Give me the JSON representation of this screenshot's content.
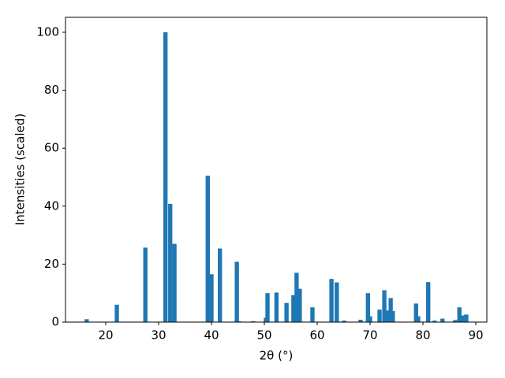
{
  "chart_data": {
    "type": "bar",
    "xlabel": "2θ (°)",
    "ylabel": "Intensities (scaled)",
    "x": [
      16.4,
      22.1,
      27.5,
      31.3,
      32.2,
      33.0,
      39.3,
      40.0,
      41.6,
      44.8,
      45.2,
      47.9,
      50.3,
      50.6,
      52.3,
      54.2,
      55.5,
      56.1,
      56.7,
      59.1,
      62.7,
      63.7,
      65.1,
      68.2,
      69.6,
      70.0,
      71.8,
      72.7,
      73.3,
      73.9,
      74.3,
      78.7,
      79.1,
      81.0,
      82.2,
      83.7,
      86.1,
      86.9,
      87.5,
      88.2
    ],
    "values": [
      1,
      6,
      25.7,
      100,
      40.8,
      27,
      50.5,
      16.5,
      25.4,
      20.8,
      0.3,
      0.3,
      1.5,
      10,
      10.2,
      6.6,
      9.3,
      17,
      11.5,
      5.1,
      14.9,
      13.7,
      0.5,
      0.8,
      10,
      2,
      4.3,
      11,
      4,
      8.3,
      3.8,
      6.4,
      2,
      13.8,
      0.5,
      1.2,
      0.7,
      5.1,
      2.3,
      2.6
    ],
    "color": "#1f77b4",
    "xlim": [
      12.39,
      92.09
    ],
    "ylim": [
      0,
      105.16
    ],
    "xticks": [
      20,
      30,
      40,
      50,
      60,
      70,
      80,
      90
    ],
    "yticks": [
      0,
      20,
      40,
      60,
      80,
      100
    ],
    "grid": false
  }
}
